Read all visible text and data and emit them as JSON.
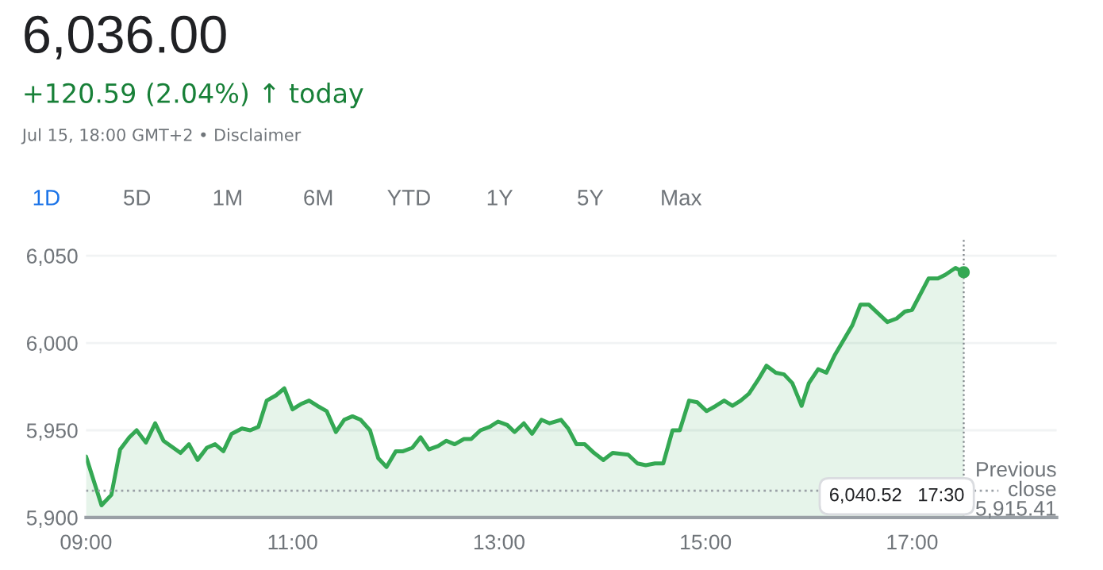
{
  "chart_data": {
    "type": "area",
    "title": "6,036.00",
    "subtitle": "+120.59 (2.04%) ↑ today",
    "annotations": [
      "Jul 15, 18:00 GMT+2 • Disclaimer",
      "1D",
      "5D",
      "1M",
      "6M",
      "YTD",
      "1Y",
      "5Y",
      "Max",
      "6,040.52   17:30"
    ],
    "series": [
      {
        "color": "#34a853",
        "x": [
          9.0,
          9.15,
          9.245,
          9.33,
          9.42,
          9.49,
          9.58,
          9.67,
          9.75,
          9.915,
          9.997,
          10.08,
          10.17,
          10.25,
          10.33,
          10.41,
          10.51,
          10.59,
          10.67,
          10.75,
          10.84,
          10.92,
          11.0,
          11.08,
          11.16,
          11.24,
          11.33,
          11.42,
          11.5,
          11.58,
          11.66,
          11.75,
          11.83,
          11.91,
          12.0,
          12.07,
          12.16,
          12.24,
          12.32,
          12.41,
          12.49,
          12.57,
          12.66,
          12.73,
          12.82,
          12.91,
          12.99,
          13.08,
          13.15,
          13.24,
          13.32,
          13.41,
          13.49,
          13.6,
          13.67,
          13.75,
          13.83,
          13.92,
          14.01,
          14.1,
          14.25,
          14.34,
          14.42,
          14.51,
          14.59,
          14.68,
          14.75,
          14.84,
          14.92,
          15.01,
          15.1,
          15.18,
          15.26,
          15.34,
          15.42,
          15.51,
          15.59,
          15.68,
          15.76,
          15.84,
          15.93,
          16.0,
          16.09,
          16.17,
          16.25,
          16.42,
          16.5,
          16.58,
          16.67,
          16.76,
          16.85,
          16.93,
          17.0,
          17.08,
          17.16,
          17.25,
          17.32,
          17.42,
          17.5
        ],
        "values": [
          5935,
          5907,
          5913,
          5939,
          5946,
          5950,
          5943,
          5954,
          5944,
          5937,
          5942,
          5933,
          5940,
          5942,
          5938,
          5948,
          5951,
          5950,
          5952,
          5967,
          5970,
          5974,
          5962,
          5965,
          5967,
          5964,
          5961,
          5949,
          5956,
          5958,
          5956,
          5950,
          5934,
          5929,
          5938,
          5938,
          5940,
          5946,
          5939,
          5941,
          5944,
          5942,
          5945,
          5945,
          5950,
          5952,
          5955,
          5953,
          5949,
          5954,
          5948,
          5956,
          5954,
          5956,
          5951,
          5942,
          5942,
          5937,
          5933,
          5937,
          5936,
          5931,
          5930,
          5931,
          5931,
          5950,
          5950,
          5967,
          5966,
          5961,
          5964,
          5967,
          5964,
          5967,
          5971,
          5979,
          5987,
          5983,
          5982,
          5977,
          5964,
          5977,
          5985,
          5983,
          5993,
          6010,
          6022,
          6022,
          6017,
          6012,
          6014,
          6018,
          6019,
          6028,
          6037,
          6037,
          6039,
          6043,
          6040.52
        ]
      },
      {
        "type": "scatter",
        "color": "#34a853",
        "x": [
          17.5
        ],
        "values": [
          6040.52
        ]
      }
    ],
    "xlim": [
      9,
      18.4
    ],
    "xticks": [
      {
        "value": 9,
        "label": "09:00"
      },
      {
        "value": 11,
        "label": "11:00"
      },
      {
        "value": 13,
        "label": "13:00"
      },
      {
        "value": 15,
        "label": "15:00"
      },
      {
        "value": 17,
        "label": "17:00"
      }
    ],
    "ylim": [
      5900,
      6060
    ],
    "yticks": [
      {
        "value": 5900,
        "label": "5,900"
      },
      {
        "value": 5950,
        "label": "5,950"
      },
      {
        "value": 6000,
        "label": "6,000"
      },
      {
        "value": 6050,
        "label": "6,050"
      }
    ],
    "grid": "y",
    "legend": false,
    "ref_lines": [
      {
        "axis": "y",
        "value": 5915.41,
        "label": "Previous\nclose\n5,915.41",
        "color": "#9aa0a6",
        "line_style": "dotted"
      },
      {
        "axis": "x",
        "value": 17.5,
        "label": null,
        "color": "#80868b",
        "line_style": "dotted"
      }
    ]
  }
}
